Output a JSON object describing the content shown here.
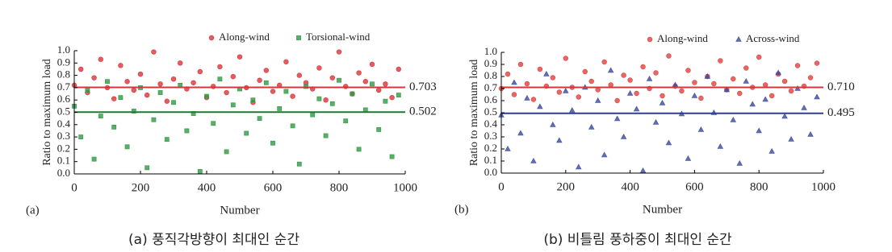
{
  "chart_data": [
    {
      "type": "scatter",
      "panel_label": "(a)",
      "caption": "(a) 풍직각방향이 최대인 순간",
      "xlabel": "Number",
      "ylabel": "Ratio to maximum load",
      "xlim": [
        0,
        1000
      ],
      "xticks": [
        0,
        200,
        400,
        600,
        800,
        1000
      ],
      "ylim": [
        0,
        1
      ],
      "yticks": [
        {
          "value": 0,
          "label": "0.0"
        },
        0.1,
        0.2,
        0.3,
        0.4,
        0.5,
        0.6,
        0.7,
        0.8,
        0.9,
        {
          "value": 1,
          "label": "1.0"
        }
      ],
      "x": [
        0,
        20,
        40,
        60,
        80,
        100,
        120,
        140,
        160,
        180,
        200,
        220,
        240,
        260,
        280,
        300,
        320,
        340,
        360,
        380,
        400,
        420,
        440,
        460,
        480,
        500,
        520,
        540,
        560,
        580,
        600,
        620,
        640,
        660,
        680,
        700,
        720,
        740,
        760,
        780,
        800,
        820,
        840,
        860,
        880,
        900,
        920,
        940,
        960,
        980
      ],
      "series": [
        {
          "name": "Along-wind",
          "color": "#d9343a",
          "marker": "circle",
          "values": [
            0.72,
            0.85,
            0.66,
            0.78,
            0.93,
            0.7,
            0.61,
            0.88,
            0.75,
            0.68,
            0.81,
            0.64,
            0.99,
            0.73,
            0.59,
            0.77,
            0.9,
            0.69,
            0.74,
            0.83,
            0.62,
            0.71,
            0.87,
            0.66,
            0.79,
            0.95,
            0.7,
            0.58,
            0.76,
            0.84,
            0.67,
            0.72,
            0.91,
            0.63,
            0.8,
            0.74,
            0.69,
            0.86,
            0.6,
            0.78,
            0.99,
            0.71,
            0.65,
            0.82,
            0.75,
            0.89,
            0.68,
            0.73,
            0.62,
            0.85
          ]
        },
        {
          "name": "Torsional-wind",
          "color": "#2f9a45",
          "marker": "square",
          "values": [
            0.55,
            0.3,
            0.68,
            0.12,
            0.47,
            0.75,
            0.38,
            0.62,
            0.22,
            0.51,
            0.7,
            0.05,
            0.44,
            0.66,
            0.28,
            0.58,
            0.72,
            0.35,
            0.49,
            0.02,
            0.63,
            0.41,
            0.77,
            0.18,
            0.56,
            0.69,
            0.33,
            0.6,
            0.45,
            0.74,
            0.25,
            0.53,
            0.67,
            0.39,
            0.08,
            0.71,
            0.48,
            0.61,
            0.31,
            0.57,
            0.76,
            0.43,
            0.65,
            0.2,
            0.52,
            0.73,
            0.36,
            0.59,
            0.14,
            0.64
          ]
        }
      ],
      "reference_lines": [
        {
          "value": 0.703,
          "color": "#d9343a"
        },
        {
          "value": 0.502,
          "color": "#1f7a30"
        }
      ]
    },
    {
      "type": "scatter",
      "panel_label": "(b)",
      "caption": "(b) 비틀림 풍하중이 최대인 순간",
      "xlabel": "Number",
      "ylabel": "Ratio to maximum load",
      "xlim": [
        0,
        1000
      ],
      "xticks": [
        0,
        200,
        400,
        600,
        800,
        1000
      ],
      "ylim": [
        0,
        1
      ],
      "yticks": [
        {
          "value": 0,
          "label": "0.0"
        },
        0.1,
        0.2,
        0.3,
        0.4,
        0.5,
        0.6,
        0.7,
        0.8,
        0.9,
        {
          "value": 1,
          "label": "1.0"
        }
      ],
      "x": [
        0,
        20,
        40,
        60,
        80,
        100,
        120,
        140,
        160,
        180,
        200,
        220,
        240,
        260,
        280,
        300,
        320,
        340,
        360,
        380,
        400,
        420,
        440,
        460,
        480,
        500,
        520,
        540,
        560,
        580,
        600,
        620,
        640,
        660,
        680,
        700,
        720,
        740,
        760,
        780,
        800,
        820,
        840,
        860,
        880,
        900,
        920,
        940,
        960,
        980
      ],
      "series": [
        {
          "name": "Along-wind",
          "color": "#e0413f",
          "marker": "circle",
          "values": [
            0.7,
            0.82,
            0.65,
            0.9,
            0.74,
            0.61,
            0.86,
            0.72,
            0.79,
            0.67,
            0.95,
            0.71,
            0.63,
            0.84,
            0.76,
            0.69,
            0.92,
            0.73,
            0.6,
            0.81,
            0.77,
            0.66,
            0.88,
            0.7,
            0.83,
            0.64,
            0.97,
            0.72,
            0.68,
            0.85,
            0.75,
            0.62,
            0.8,
            0.74,
            0.93,
            0.69,
            0.78,
            0.66,
            0.87,
            0.71,
            0.96,
            0.73,
            0.64,
            0.82,
            0.76,
            0.68,
            0.89,
            0.72,
            0.79,
            0.91
          ]
        },
        {
          "name": "Across-wind",
          "color": "#3b4aa0",
          "marker": "triangle",
          "values": [
            0.48,
            0.2,
            0.75,
            0.33,
            0.62,
            0.1,
            0.55,
            0.82,
            0.4,
            0.27,
            0.68,
            0.52,
            0.05,
            0.71,
            0.38,
            0.6,
            0.15,
            0.85,
            0.45,
            0.3,
            0.66,
            0.53,
            0.02,
            0.78,
            0.42,
            0.58,
            0.25,
            0.73,
            0.49,
            0.12,
            0.64,
            0.36,
            0.8,
            0.5,
            0.22,
            0.69,
            0.44,
            0.08,
            0.76,
            0.57,
            0.35,
            0.61,
            0.18,
            0.83,
            0.47,
            0.28,
            0.7,
            0.54,
            0.32,
            0.63
          ]
        }
      ],
      "reference_lines": [
        {
          "value": 0.71,
          "label": "0.710",
          "color": "#d9343a"
        },
        {
          "value": 0.495,
          "color": "#2e3f8f"
        }
      ]
    }
  ]
}
